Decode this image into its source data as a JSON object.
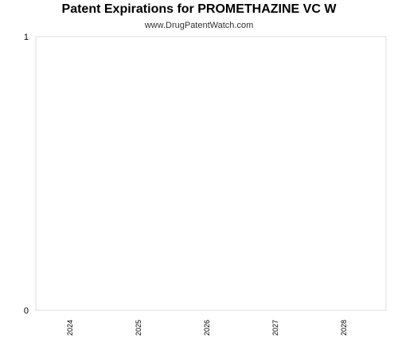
{
  "chart_data": {
    "type": "bar",
    "title": "Patent Expirations for PROMETHAZINE VC W",
    "subtitle": "www.DrugPatentWatch.com",
    "xlabel": "",
    "ylabel": "",
    "categories": [
      "2024",
      "2025",
      "2026",
      "2027",
      "2028"
    ],
    "series": [
      {
        "values": [
          0,
          0,
          0,
          0,
          0
        ]
      }
    ],
    "ylim": [
      0,
      1
    ],
    "yticks": [
      "0",
      "1"
    ],
    "grid": false,
    "legend": "none",
    "colors": {
      "axis": "#cccccc",
      "text": "#000000"
    }
  }
}
